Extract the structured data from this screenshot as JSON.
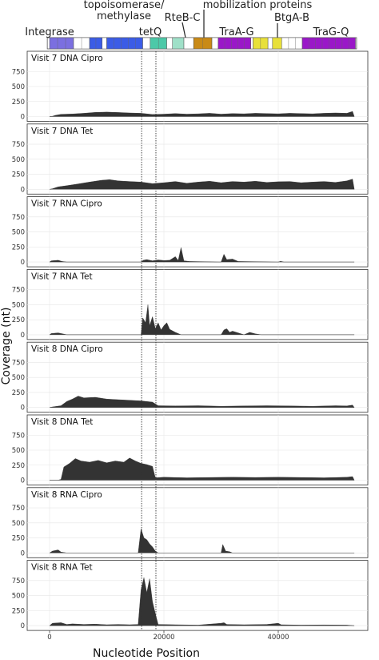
{
  "chart_data": {
    "type": "area",
    "xlabel": "Nucleotide Position",
    "ylabel": "Coverage (nt)",
    "xlim": [
      -3000,
      55000
    ],
    "x_ticks": [
      0,
      20000,
      40000
    ],
    "y_ticks": [
      0,
      250,
      500,
      750
    ],
    "ylim": [
      0,
      900
    ],
    "grid": true,
    "fill_color": "#333333",
    "reference_lines_x": [
      16100,
      18600
    ],
    "genome_map": {
      "labels": [
        {
          "text": "Integrase",
          "x": 0
        },
        {
          "text": "topoisomerase/",
          "x": 10000
        },
        {
          "text": "methylase",
          "x": 10000
        },
        {
          "text": "tetQ",
          "x": 18000
        },
        {
          "text": "RteB-C",
          "x": 23000
        },
        {
          "text": "mobilization proteins",
          "x": 31000
        },
        {
          "text": "TraA-G",
          "x": 34000
        },
        {
          "text": "BtgA-B",
          "x": 40000
        },
        {
          "text": "TraG-Q",
          "x": 52000
        }
      ],
      "segments": [
        {
          "start": 0,
          "end": 4200,
          "color": "#7b6fe0"
        },
        {
          "start": 4200,
          "end": 7000,
          "color": "#ffffff"
        },
        {
          "start": 7000,
          "end": 9200,
          "color": "#3b5ce6"
        },
        {
          "start": 9200,
          "end": 10000,
          "color": "#ffffff"
        },
        {
          "start": 10000,
          "end": 16300,
          "color": "#3b5ce6"
        },
        {
          "start": 16300,
          "end": 17600,
          "color": "#ffffff"
        },
        {
          "start": 17600,
          "end": 20500,
          "color": "#4cc9a8"
        },
        {
          "start": 20500,
          "end": 21500,
          "color": "#ffffff"
        },
        {
          "start": 21500,
          "end": 23500,
          "color": "#9fe0c8"
        },
        {
          "start": 23500,
          "end": 25200,
          "color": "#ffffff"
        },
        {
          "start": 25200,
          "end": 28400,
          "color": "#c98a16"
        },
        {
          "start": 28400,
          "end": 29500,
          "color": "#ffffff"
        },
        {
          "start": 29500,
          "end": 35200,
          "color": "#9a18c8"
        },
        {
          "start": 35200,
          "end": 35600,
          "color": "#ffffff"
        },
        {
          "start": 35600,
          "end": 38200,
          "color": "#e8e03a"
        },
        {
          "start": 38200,
          "end": 39000,
          "color": "#ffffff"
        },
        {
          "start": 39000,
          "end": 40600,
          "color": "#e8e03a"
        },
        {
          "start": 40600,
          "end": 44200,
          "color": "#ffffff"
        },
        {
          "start": 44200,
          "end": 53500,
          "color": "#9a18c8"
        }
      ]
    },
    "panels": [
      {
        "title": "Visit 7 DNA Cipro",
        "points": [
          [
            0,
            0
          ],
          [
            500,
            5
          ],
          [
            1000,
            20
          ],
          [
            2000,
            38
          ],
          [
            4000,
            42
          ],
          [
            6000,
            55
          ],
          [
            8000,
            70
          ],
          [
            10000,
            75
          ],
          [
            12000,
            68
          ],
          [
            14000,
            60
          ],
          [
            16000,
            55
          ],
          [
            18000,
            35
          ],
          [
            20000,
            40
          ],
          [
            22000,
            50
          ],
          [
            24000,
            40
          ],
          [
            26000,
            45
          ],
          [
            28000,
            55
          ],
          [
            30000,
            40
          ],
          [
            32000,
            50
          ],
          [
            34000,
            45
          ],
          [
            36000,
            55
          ],
          [
            38000,
            50
          ],
          [
            40000,
            45
          ],
          [
            42000,
            55
          ],
          [
            44000,
            50
          ],
          [
            46000,
            45
          ],
          [
            48000,
            55
          ],
          [
            50000,
            60
          ],
          [
            52000,
            55
          ],
          [
            53000,
            85
          ],
          [
            53300,
            0
          ]
        ]
      },
      {
        "title": "Visit 7 DNA Tet",
        "points": [
          [
            0,
            0
          ],
          [
            500,
            10
          ],
          [
            1500,
            40
          ],
          [
            3000,
            60
          ],
          [
            5000,
            90
          ],
          [
            7000,
            120
          ],
          [
            9000,
            150
          ],
          [
            10500,
            160
          ],
          [
            12000,
            140
          ],
          [
            14000,
            130
          ],
          [
            16000,
            120
          ],
          [
            18000,
            95
          ],
          [
            20000,
            110
          ],
          [
            22000,
            130
          ],
          [
            24000,
            100
          ],
          [
            26000,
            120
          ],
          [
            28000,
            135
          ],
          [
            30000,
            110
          ],
          [
            32000,
            130
          ],
          [
            34000,
            120
          ],
          [
            36000,
            135
          ],
          [
            38000,
            115
          ],
          [
            40000,
            125
          ],
          [
            42000,
            130
          ],
          [
            44000,
            110
          ],
          [
            46000,
            120
          ],
          [
            48000,
            130
          ],
          [
            50000,
            115
          ],
          [
            52000,
            140
          ],
          [
            53000,
            170
          ],
          [
            53300,
            0
          ]
        ]
      },
      {
        "title": "Visit 7 RNA Cipro",
        "points": [
          [
            0,
            0
          ],
          [
            300,
            20
          ],
          [
            1500,
            30
          ],
          [
            2200,
            10
          ],
          [
            3000,
            0
          ],
          [
            16000,
            0
          ],
          [
            16400,
            30
          ],
          [
            17000,
            40
          ],
          [
            18000,
            20
          ],
          [
            19000,
            35
          ],
          [
            20000,
            25
          ],
          [
            21000,
            30
          ],
          [
            22000,
            90
          ],
          [
            22500,
            25
          ],
          [
            23000,
            240
          ],
          [
            23500,
            20
          ],
          [
            24500,
            10
          ],
          [
            30000,
            0
          ],
          [
            30500,
            130
          ],
          [
            31000,
            40
          ],
          [
            32000,
            50
          ],
          [
            33000,
            10
          ],
          [
            40000,
            0
          ],
          [
            40400,
            12
          ],
          [
            41000,
            0
          ],
          [
            53300,
            0
          ]
        ]
      },
      {
        "title": "Visit 7 RNA Tet",
        "points": [
          [
            0,
            0
          ],
          [
            300,
            20
          ],
          [
            1500,
            30
          ],
          [
            2500,
            10
          ],
          [
            3000,
            0
          ],
          [
            16000,
            0
          ],
          [
            16300,
            280
          ],
          [
            16800,
            200
          ],
          [
            17200,
            500
          ],
          [
            17500,
            150
          ],
          [
            18000,
            300
          ],
          [
            18500,
            100
          ],
          [
            19000,
            200
          ],
          [
            19500,
            80
          ],
          [
            20000,
            150
          ],
          [
            20500,
            200
          ],
          [
            21000,
            90
          ],
          [
            22000,
            40
          ],
          [
            23000,
            0
          ],
          [
            30000,
            0
          ],
          [
            30500,
            80
          ],
          [
            31000,
            100
          ],
          [
            31500,
            40
          ],
          [
            32000,
            60
          ],
          [
            33000,
            30
          ],
          [
            34000,
            0
          ],
          [
            35000,
            40
          ],
          [
            36000,
            15
          ],
          [
            37000,
            0
          ],
          [
            53300,
            0
          ]
        ]
      },
      {
        "title": "Visit 8 DNA Cipro",
        "points": [
          [
            0,
            0
          ],
          [
            500,
            10
          ],
          [
            2000,
            30
          ],
          [
            3000,
            100
          ],
          [
            4000,
            140
          ],
          [
            5000,
            190
          ],
          [
            6000,
            160
          ],
          [
            8000,
            170
          ],
          [
            10000,
            140
          ],
          [
            12000,
            130
          ],
          [
            14000,
            120
          ],
          [
            16000,
            110
          ],
          [
            18000,
            90
          ],
          [
            19000,
            30
          ],
          [
            22000,
            25
          ],
          [
            26000,
            30
          ],
          [
            30000,
            20
          ],
          [
            34000,
            25
          ],
          [
            38000,
            30
          ],
          [
            42000,
            25
          ],
          [
            46000,
            20
          ],
          [
            50000,
            30
          ],
          [
            52000,
            25
          ],
          [
            53000,
            40
          ],
          [
            53300,
            0
          ]
        ]
      },
      {
        "title": "Visit 8 DNA Tet",
        "points": [
          [
            0,
            0
          ],
          [
            1500,
            0
          ],
          [
            2000,
            15
          ],
          [
            2500,
            220
          ],
          [
            3500,
            280
          ],
          [
            4500,
            360
          ],
          [
            5500,
            320
          ],
          [
            7000,
            300
          ],
          [
            8500,
            330
          ],
          [
            10000,
            290
          ],
          [
            11500,
            320
          ],
          [
            13000,
            300
          ],
          [
            14000,
            370
          ],
          [
            15000,
            320
          ],
          [
            16000,
            280
          ],
          [
            17000,
            260
          ],
          [
            18000,
            230
          ],
          [
            18500,
            40
          ],
          [
            20000,
            50
          ],
          [
            24000,
            40
          ],
          [
            28000,
            45
          ],
          [
            32000,
            50
          ],
          [
            36000,
            45
          ],
          [
            40000,
            50
          ],
          [
            44000,
            45
          ],
          [
            48000,
            40
          ],
          [
            52000,
            50
          ],
          [
            53000,
            60
          ],
          [
            53300,
            0
          ]
        ]
      },
      {
        "title": "Visit 8 RNA Cipro",
        "points": [
          [
            0,
            0
          ],
          [
            500,
            30
          ],
          [
            1500,
            50
          ],
          [
            2000,
            15
          ],
          [
            3000,
            0
          ],
          [
            15500,
            0
          ],
          [
            16000,
            400
          ],
          [
            16500,
            250
          ],
          [
            17000,
            220
          ],
          [
            17500,
            150
          ],
          [
            18000,
            100
          ],
          [
            18500,
            30
          ],
          [
            19000,
            0
          ],
          [
            30000,
            0
          ],
          [
            30300,
            140
          ],
          [
            30800,
            30
          ],
          [
            31500,
            20
          ],
          [
            32000,
            0
          ],
          [
            53300,
            0
          ]
        ]
      },
      {
        "title": "Visit 8 RNA Tet",
        "points": [
          [
            0,
            0
          ],
          [
            500,
            40
          ],
          [
            2000,
            50
          ],
          [
            3000,
            20
          ],
          [
            4000,
            30
          ],
          [
            6000,
            20
          ],
          [
            8000,
            25
          ],
          [
            10000,
            15
          ],
          [
            12000,
            20
          ],
          [
            14000,
            15
          ],
          [
            15500,
            20
          ],
          [
            16000,
            600
          ],
          [
            16500,
            800
          ],
          [
            17000,
            550
          ],
          [
            17500,
            780
          ],
          [
            18000,
            400
          ],
          [
            18500,
            200
          ],
          [
            19000,
            20
          ],
          [
            22000,
            15
          ],
          [
            26000,
            10
          ],
          [
            30000,
            40
          ],
          [
            30500,
            50
          ],
          [
            31000,
            20
          ],
          [
            34000,
            15
          ],
          [
            38000,
            20
          ],
          [
            40000,
            40
          ],
          [
            40500,
            15
          ],
          [
            44000,
            10
          ],
          [
            48000,
            12
          ],
          [
            52000,
            10
          ],
          [
            53300,
            0
          ]
        ]
      }
    ]
  }
}
